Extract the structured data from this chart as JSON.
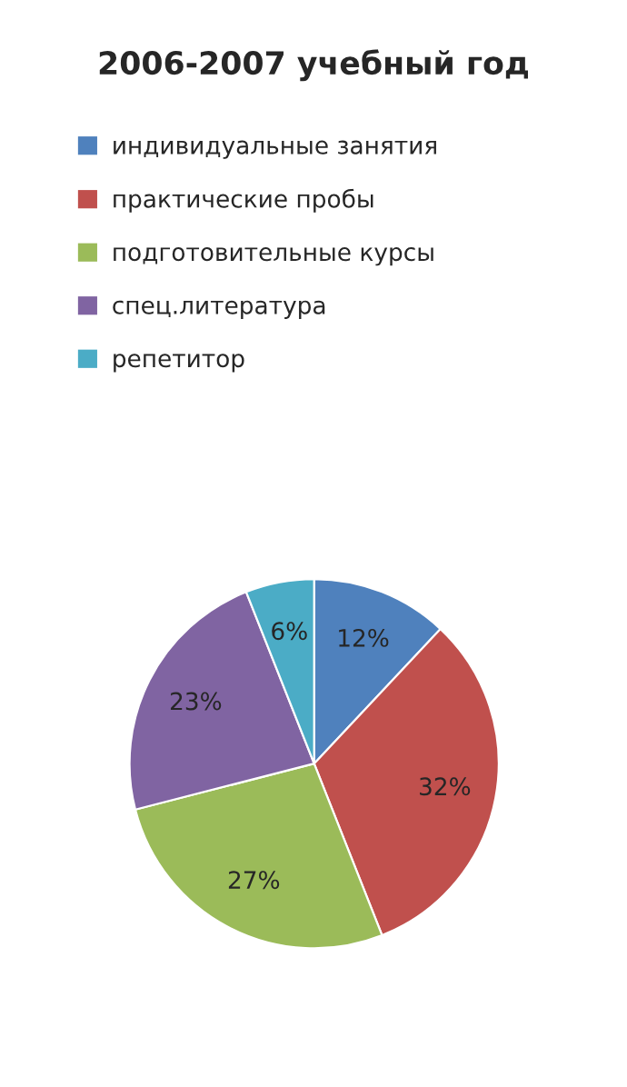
{
  "chart_data": {
    "type": "pie",
    "title": "2006-2007 учебный год",
    "categories": [
      "индивидуальные занятия",
      "практические пробы",
      "подготовительные курсы",
      "спец.литература",
      "репетитор"
    ],
    "values": [
      12,
      32,
      27,
      23,
      6
    ],
    "colors": [
      "#4f81bd",
      "#c0504d",
      "#9bbb59",
      "#8064a2",
      "#4bacc6"
    ],
    "value_labels": [
      "12%",
      "32%",
      "27%",
      "23%",
      "6%"
    ],
    "legend": "top"
  }
}
